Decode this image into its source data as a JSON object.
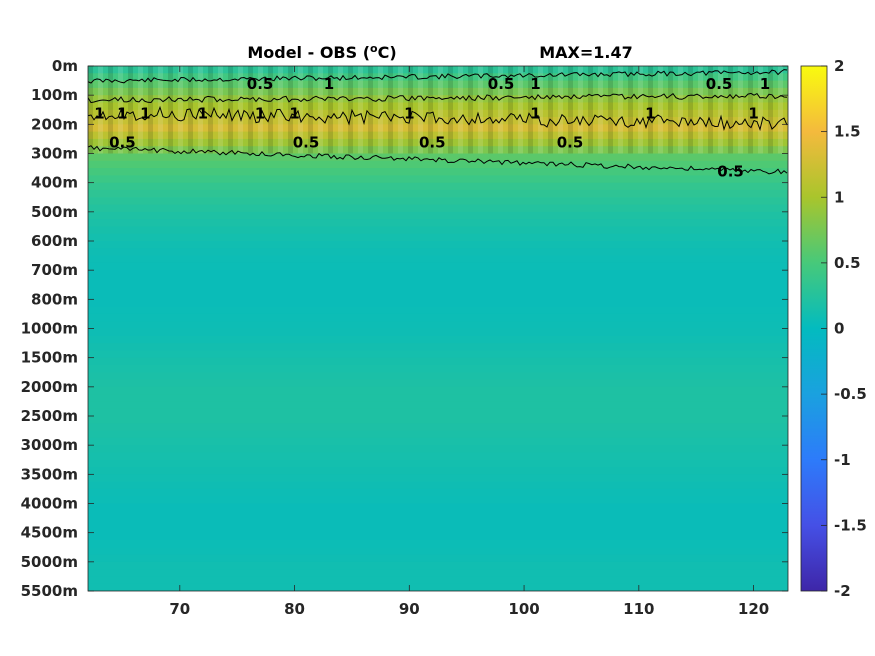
{
  "chart_data": {
    "type": "heatmap",
    "title": "Model - OBS",
    "title_unit_prefix": " (",
    "title_unit_sup": "o",
    "title_unit_suffix": "C)",
    "max_label": "MAX=1.47",
    "xlabel": "",
    "ylabel": "",
    "x_ticks": [
      70,
      80,
      90,
      100,
      110,
      120
    ],
    "xlim": [
      62,
      123
    ],
    "y_tick_labels": [
      "0m",
      "100m",
      "200m",
      "300m",
      "400m",
      "500m",
      "600m",
      "700m",
      "800m",
      "1000m",
      "1500m",
      "2000m",
      "2500m",
      "3000m",
      "3500m",
      "4000m",
      "4500m",
      "5000m",
      "5500m"
    ],
    "colorbar": {
      "ticks": [
        "2",
        "1.5",
        "1",
        "0.5",
        "0",
        "-0.5",
        "-1",
        "-1.5",
        "-2"
      ],
      "range": [
        -2,
        2
      ],
      "colormap": "parula"
    },
    "depth_profile_values": [
      0.3,
      0.9,
      1.3,
      0.6,
      0.35,
      0.2,
      0.1,
      0.05,
      0.05,
      0.08,
      0.15,
      0.2,
      0.2,
      0.15,
      0.1,
      0.05,
      0.05,
      0.1,
      0.1
    ],
    "contour_levels": [
      0.5,
      1
    ],
    "contour_labels": [
      {
        "text": "0.5",
        "x": 77,
        "depth": "100m"
      },
      {
        "text": "0.5",
        "x": 98,
        "depth": "100m"
      },
      {
        "text": "0.5",
        "x": 117,
        "depth": "100m"
      },
      {
        "text": "1",
        "x": 63,
        "depth": "200m"
      },
      {
        "text": "1",
        "x": 65,
        "depth": "200m"
      },
      {
        "text": "1",
        "x": 67,
        "depth": "200m"
      },
      {
        "text": "1",
        "x": 72,
        "depth": "200m"
      },
      {
        "text": "1",
        "x": 77,
        "depth": "200m"
      },
      {
        "text": "1",
        "x": 80,
        "depth": "200m"
      },
      {
        "text": "1",
        "x": 83,
        "depth": "100m"
      },
      {
        "text": "1",
        "x": 90,
        "depth": "200m"
      },
      {
        "text": "1",
        "x": 101,
        "depth": "100m"
      },
      {
        "text": "1",
        "x": 101,
        "depth": "200m"
      },
      {
        "text": "1",
        "x": 111,
        "depth": "200m"
      },
      {
        "text": "1",
        "x": 121,
        "depth": "100m"
      },
      {
        "text": "1",
        "x": 120,
        "depth": "200m"
      },
      {
        "text": "0.5",
        "x": 65,
        "depth": "300m"
      },
      {
        "text": "0.5",
        "x": 81,
        "depth": "300m"
      },
      {
        "text": "0.5",
        "x": 92,
        "depth": "300m"
      },
      {
        "text": "0.5",
        "x": 104,
        "depth": "300m"
      },
      {
        "text": "0.5",
        "x": 118,
        "depth": "400m"
      }
    ]
  }
}
